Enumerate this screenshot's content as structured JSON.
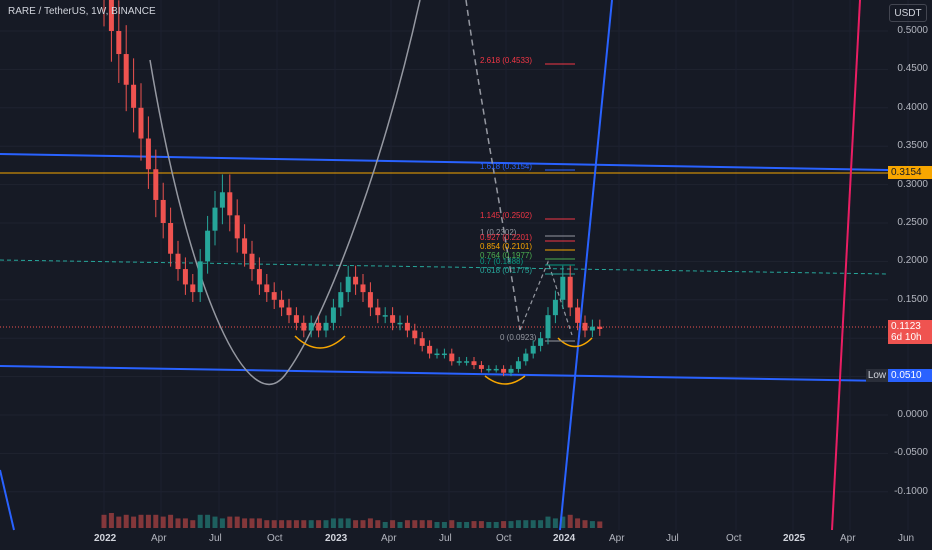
{
  "header": {
    "title": "RARE / TetherUS, 1W, BINANCE"
  },
  "price_axis": {
    "unit_button": "USDT",
    "labels": [
      "0.5000",
      "0.4500",
      "0.4000",
      "0.3500",
      "0.3000",
      "0.2500",
      "0.2000",
      "0.1500",
      "0.1000",
      "0.0500",
      "0.0000",
      "-0.0500",
      "-0.1000"
    ]
  },
  "price_tags": {
    "level": "0.3154",
    "current_price": "0.1123",
    "countdown": "6d 10h",
    "low_label": "Low",
    "low_value": "0.0510"
  },
  "time_axis": {
    "labels": [
      {
        "text": "2022",
        "bold": true
      },
      {
        "text": "Apr",
        "bold": false
      },
      {
        "text": "Jul",
        "bold": false
      },
      {
        "text": "Oct",
        "bold": false
      },
      {
        "text": "2023",
        "bold": true
      },
      {
        "text": "Apr",
        "bold": false
      },
      {
        "text": "Jul",
        "bold": false
      },
      {
        "text": "Oct",
        "bold": false
      },
      {
        "text": "2024",
        "bold": true
      },
      {
        "text": "Apr",
        "bold": false
      },
      {
        "text": "Jul",
        "bold": false
      },
      {
        "text": "Oct",
        "bold": false
      },
      {
        "text": "2025",
        "bold": true
      },
      {
        "text": "Apr",
        "bold": false
      },
      {
        "text": "Jun",
        "bold": false
      }
    ]
  },
  "fib_levels": [
    {
      "text": "2.618 (0.4533)",
      "color": "#f23645"
    },
    {
      "text": "1.618 (0.3154)",
      "color": "#2962ff"
    },
    {
      "text": "1.145 (0.2502)",
      "color": "#f23645"
    },
    {
      "text": "1 (0.2302)",
      "color": "#9598a1"
    },
    {
      "text": "0.927 (0.2201)",
      "color": "#f23645"
    },
    {
      "text": "0.854 (0.2101)",
      "color": "#f7a600"
    },
    {
      "text": "0.764 (0.1977)",
      "color": "#4caf50"
    },
    {
      "text": "0.7 (0.1888)",
      "color": "#089981"
    },
    {
      "text": "0.618 (0.1775)",
      "color": "#26a69a"
    },
    {
      "text": "0 (0.0923)",
      "color": "#9598a1"
    }
  ],
  "colors": {
    "background": "#161a25",
    "up": "#26a69a",
    "down": "#ef5350",
    "channel": "#2962ff",
    "level_line": "#f7a600",
    "curve": "#9598a1",
    "red_line": "#e91e63"
  },
  "chart_data": {
    "type": "candlestick",
    "symbol": "RARE / TetherUS",
    "interval": "1W",
    "exchange": "BINANCE",
    "current_price": 0.1123,
    "marked_low": 0.051,
    "horizontal_level": 0.3154,
    "ylim": [
      -0.13,
      0.52
    ],
    "closes_approx": [
      0.55,
      0.5,
      0.47,
      0.43,
      0.4,
      0.36,
      0.32,
      0.28,
      0.25,
      0.21,
      0.19,
      0.17,
      0.16,
      0.2,
      0.24,
      0.27,
      0.29,
      0.26,
      0.23,
      0.21,
      0.19,
      0.17,
      0.16,
      0.15,
      0.14,
      0.13,
      0.12,
      0.11,
      0.12,
      0.11,
      0.12,
      0.14,
      0.16,
      0.18,
      0.17,
      0.16,
      0.14,
      0.13,
      0.13,
      0.12,
      0.12,
      0.11,
      0.1,
      0.09,
      0.08,
      0.08,
      0.08,
      0.07,
      0.07,
      0.07,
      0.065,
      0.06,
      0.06,
      0.06,
      0.055,
      0.06,
      0.07,
      0.08,
      0.09,
      0.1,
      0.13,
      0.15,
      0.18,
      0.14,
      0.12,
      0.11,
      0.115,
      0.112
    ]
  }
}
